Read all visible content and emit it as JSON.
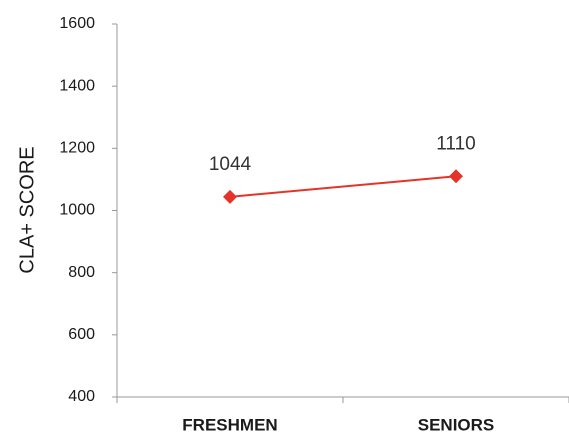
{
  "chart_data": {
    "type": "line",
    "ylabel": "CLA+ SCORE",
    "categories": [
      "FRESHMEN",
      "SENIORS"
    ],
    "series": [
      {
        "name": "CLA+ score",
        "color": "#e63329",
        "values": [
          1044,
          1110
        ]
      }
    ],
    "ylim": [
      400,
      1600
    ],
    "yticks": [
      400,
      600,
      800,
      1000,
      1200,
      1400,
      1600
    ]
  }
}
